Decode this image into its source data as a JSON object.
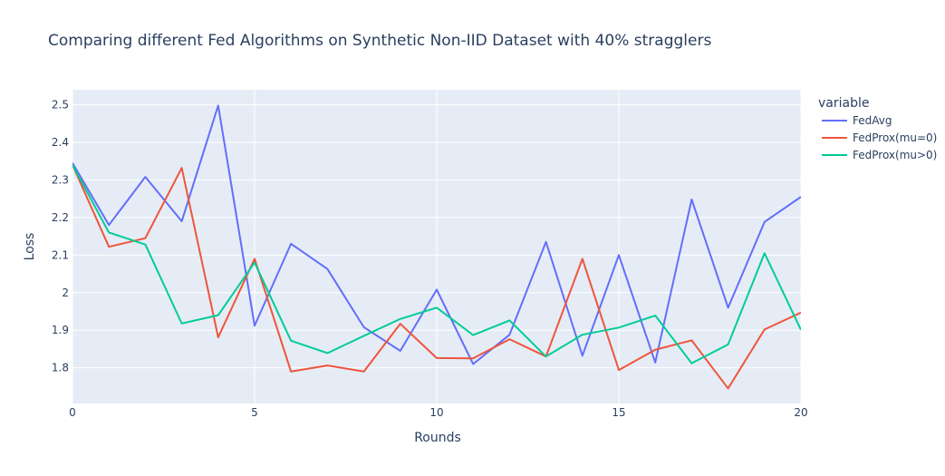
{
  "chart_data": {
    "type": "line",
    "title": "Comparing different Fed Algorithms on Synthetic Non-IID Dataset with 40% stragglers",
    "xlabel": "Rounds",
    "ylabel": "Loss",
    "xlim": [
      0,
      20
    ],
    "ylim": [
      1.705,
      2.54
    ],
    "x_ticks": [
      0,
      5,
      10,
      15,
      20
    ],
    "y_ticks": [
      1.8,
      1.9,
      2.0,
      2.1,
      2.2,
      2.3,
      2.4,
      2.5
    ],
    "y_tick_labels": [
      "1.8",
      "1.9",
      "2",
      "2.1",
      "2.2",
      "2.3",
      "2.4",
      "2.5"
    ],
    "grid": true,
    "legend": {
      "title": "variable",
      "placement": "right"
    },
    "x": [
      0,
      1,
      2,
      3,
      4,
      5,
      6,
      7,
      8,
      9,
      10,
      11,
      12,
      13,
      14,
      15,
      16,
      17,
      18,
      19,
      20
    ],
    "series": [
      {
        "name": "FedAvg",
        "color": "#636efa",
        "values": [
          2.345,
          2.18,
          2.308,
          2.19,
          2.498,
          1.912,
          2.13,
          2.063,
          1.908,
          1.845,
          2.008,
          1.81,
          1.888,
          2.135,
          1.832,
          2.1,
          1.814,
          2.248,
          1.96,
          2.188,
          2.255
        ]
      },
      {
        "name": "FedProx(mu=0)",
        "color": "#EF553B",
        "values": [
          2.34,
          2.122,
          2.145,
          2.332,
          1.881,
          2.09,
          1.79,
          1.806,
          1.79,
          1.917,
          1.826,
          1.825,
          1.876,
          1.83,
          2.09,
          1.794,
          1.848,
          1.873,
          1.745,
          1.902,
          1.947
        ]
      },
      {
        "name": "FedProx(mu>0)",
        "color": "#00cc96",
        "values": [
          2.34,
          2.16,
          2.128,
          1.918,
          1.94,
          2.08,
          1.872,
          1.839,
          1.885,
          1.93,
          1.96,
          1.887,
          1.926,
          1.83,
          1.888,
          1.907,
          1.939,
          1.812,
          1.862,
          2.105,
          1.901
        ]
      }
    ]
  }
}
